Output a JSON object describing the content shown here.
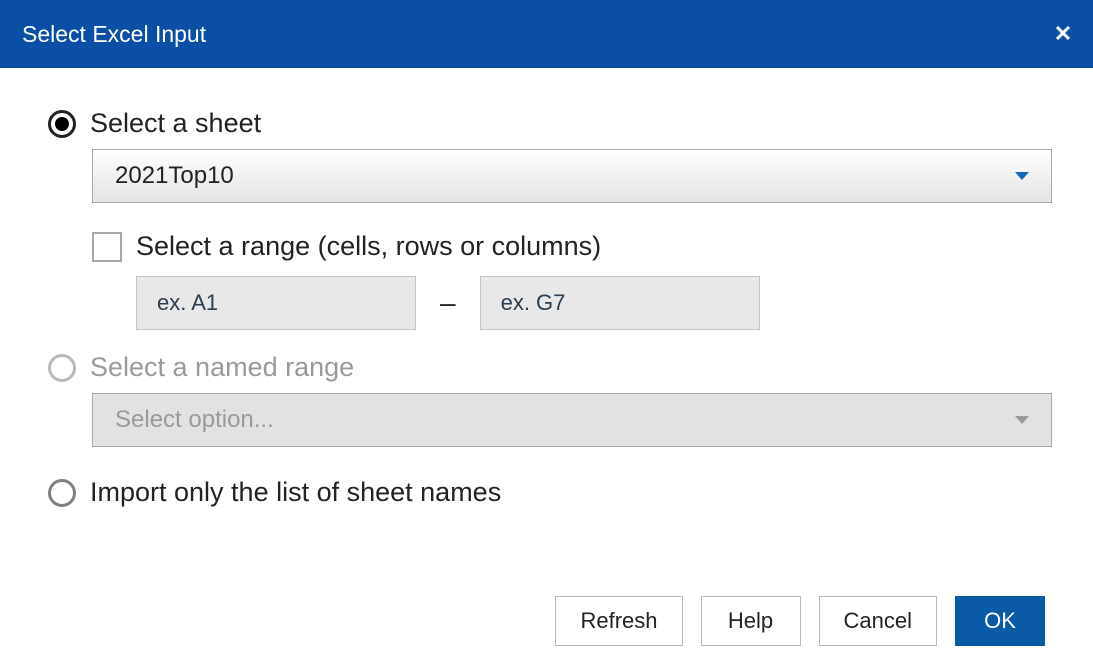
{
  "window": {
    "title": "Select Excel Input",
    "close_glyph": "✕"
  },
  "options": {
    "select_sheet": {
      "label": "Select a sheet",
      "selected": true,
      "dropdown_value": "2021Top10"
    },
    "select_range_check": {
      "label": "Select a range (cells, rows or columns)",
      "checked": false,
      "from_placeholder": "ex. A1",
      "to_placeholder": "ex. G7",
      "separator": "–"
    },
    "named_range": {
      "label": "Select a named range",
      "selected": false,
      "disabled": true,
      "dropdown_value": "Select option..."
    },
    "import_list": {
      "label": "Import only the list of sheet names",
      "selected": false
    }
  },
  "buttons": {
    "refresh": "Refresh",
    "help": "Help",
    "cancel": "Cancel",
    "ok": "OK"
  },
  "colors": {
    "titlebar_bg": "#0a4fa5",
    "primary_btn": "#0a5aa8",
    "caret": "#1467b3",
    "disabled_text": "#9a9a9a"
  }
}
